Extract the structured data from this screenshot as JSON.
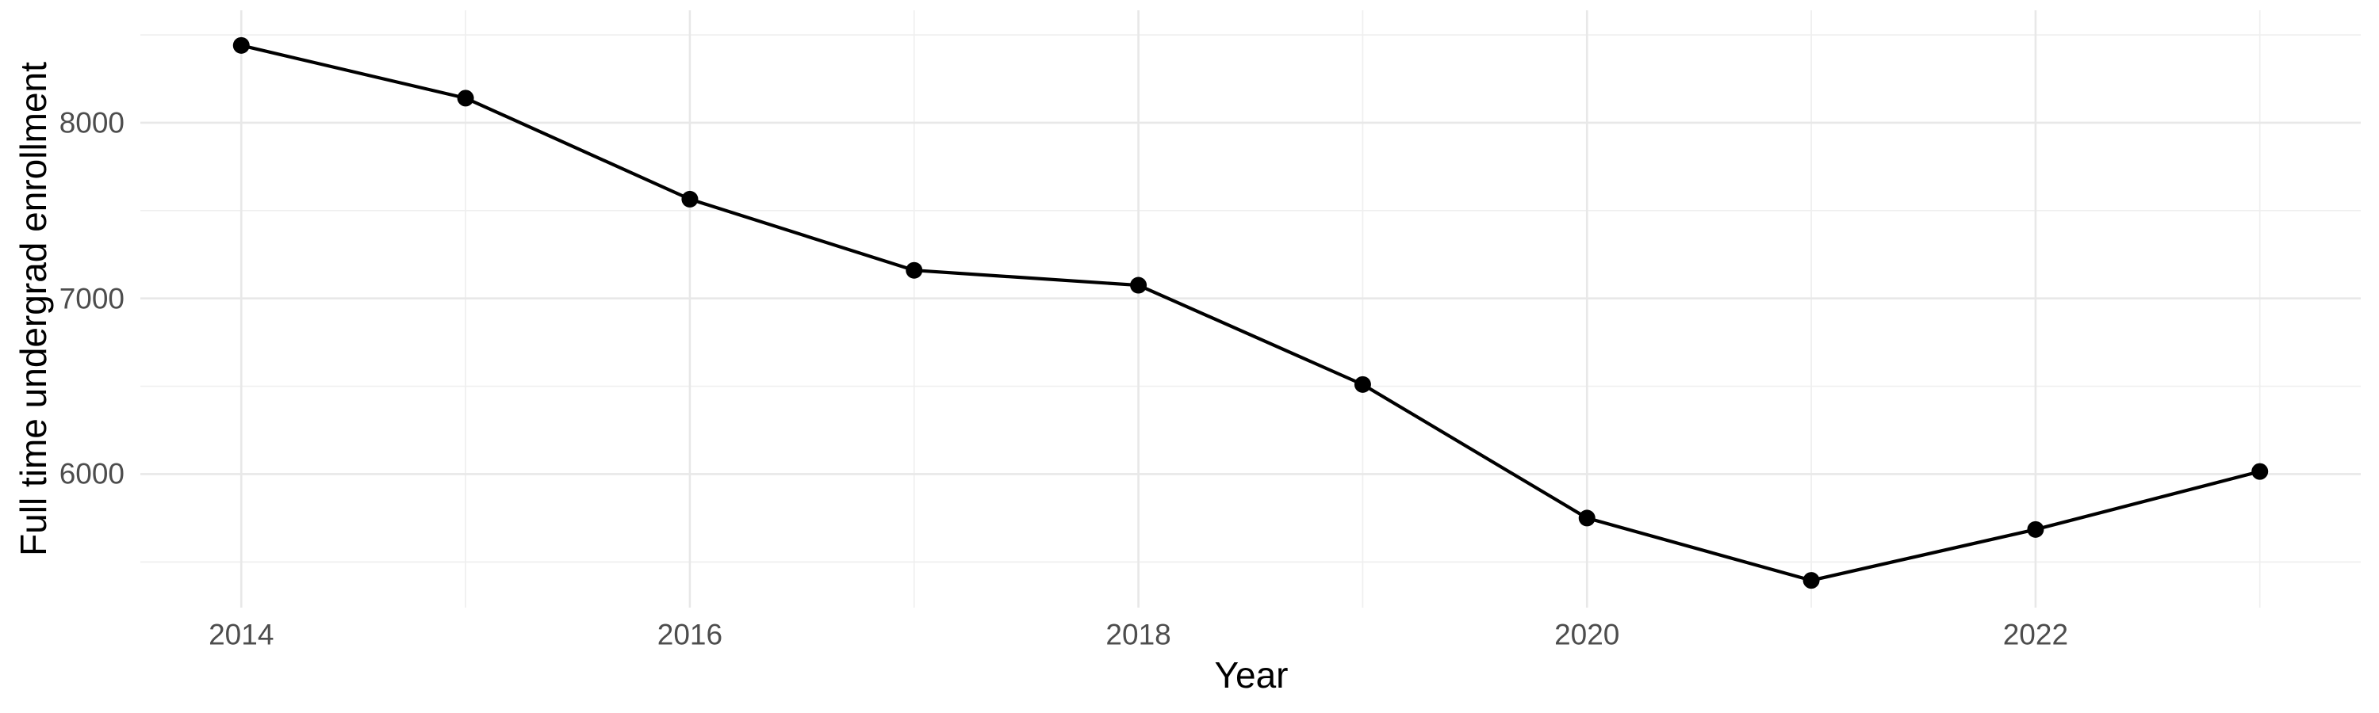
{
  "chart_data": {
    "type": "line",
    "title": "",
    "xlabel": "Year",
    "ylabel": "Full time undergrad enrollment",
    "series": [
      {
        "name": "Full time undergrad enrollment",
        "x": [
          2014,
          2015,
          2016,
          2017,
          2018,
          2019,
          2020,
          2021,
          2022,
          2023
        ],
        "values": [
          8440,
          8140,
          7565,
          7160,
          7075,
          6510,
          5750,
          5395,
          5685,
          6015
        ]
      }
    ],
    "x_tick_labels": [
      2014,
      2016,
      2018,
      2020,
      2022
    ],
    "x_minor_gridlines": [
      2015,
      2017,
      2019,
      2021,
      2023
    ],
    "y_tick_labels": [
      6000,
      7000,
      8000
    ],
    "y_minor_gridlines": [
      5500,
      6500,
      7500,
      8500
    ],
    "xlim": [
      2013.55,
      2023.45
    ],
    "ylim": [
      5240,
      8640
    ],
    "grid": "on",
    "legend": "none",
    "marker": "filled-circle",
    "colors": {
      "line": "#000000",
      "point": "#000000",
      "grid_major": "#e8e8e8",
      "grid_minor": "#efefef",
      "tick_label": "#4d4d4d",
      "axis_title": "#000000",
      "background": "#ffffff"
    }
  }
}
